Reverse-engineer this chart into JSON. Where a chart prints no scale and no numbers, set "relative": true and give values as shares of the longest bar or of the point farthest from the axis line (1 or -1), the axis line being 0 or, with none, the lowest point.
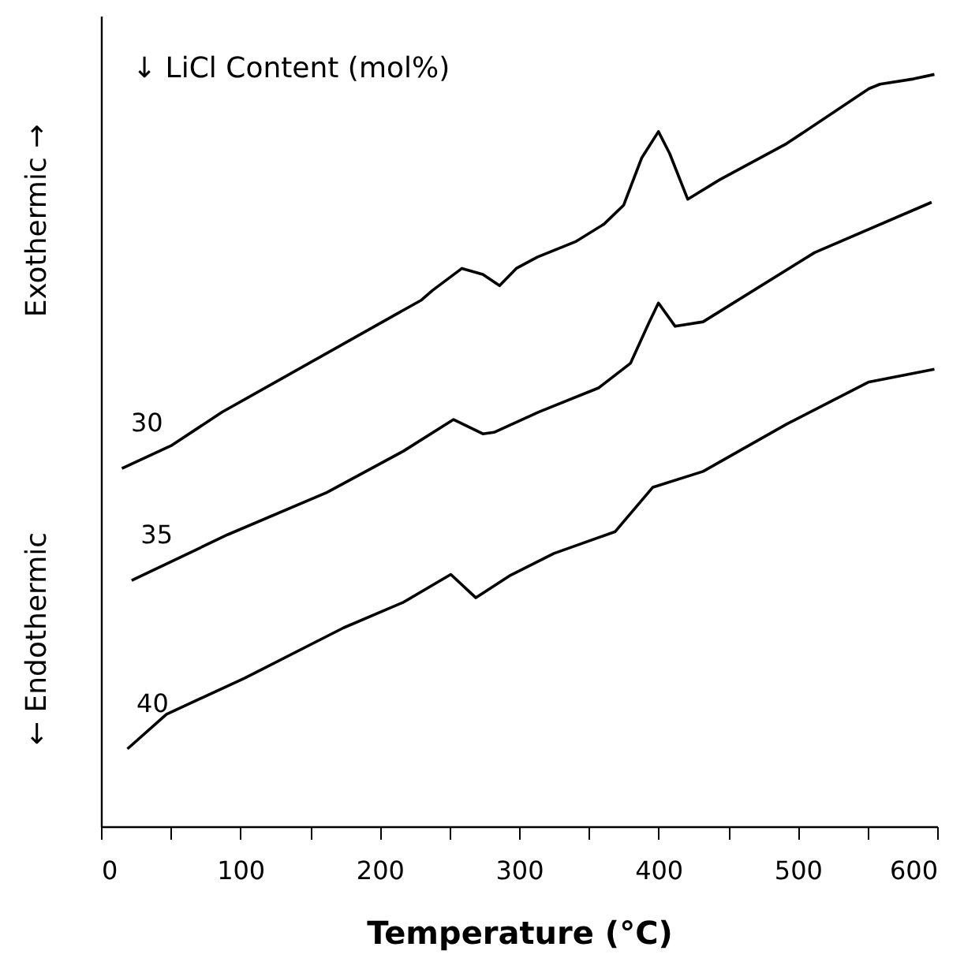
{
  "chart_data": {
    "type": "line",
    "xlabel": "Temperature (°C)",
    "relative": true,
    "grid": false,
    "marker": "none",
    "line_style": "solid",
    "xlim": [
      0,
      600
    ],
    "xticks": [
      0,
      {
        "value": 50,
        "label": null
      },
      100,
      {
        "value": 150,
        "label": null
      },
      200,
      {
        "value": 250,
        "label": null
      },
      300,
      {
        "value": 350,
        "label": null
      },
      400,
      {
        "value": 450,
        "label": null
      },
      500,
      {
        "value": 550,
        "label": null
      },
      600
    ],
    "annotations": [
      "↓  LiCl Content (mol%)",
      "Exothermic →",
      "← Endothermic"
    ],
    "series": [
      {
        "name": "30",
        "color": "#000000",
        "x": [
          15,
          51,
          87,
          230,
          238,
          259,
          274,
          286,
          298,
          313,
          341,
          361,
          375,
          388,
          400,
          408,
          421,
          444,
          492,
          551,
          559,
          583,
          598
        ],
        "values": [
          0.476,
          0.507,
          0.551,
          0.7,
          0.713,
          0.742,
          0.734,
          0.719,
          0.742,
          0.757,
          0.778,
          0.801,
          0.826,
          0.889,
          0.924,
          0.895,
          0.834,
          0.86,
          0.908,
          0.981,
          0.987,
          0.994,
          1.0
        ]
      },
      {
        "name": "35",
        "color": "#000000",
        "x": [
          22,
          91,
          162,
          217,
          253,
          274,
          282,
          314,
          357,
          380,
          393,
          400,
          412,
          432,
          512,
          596
        ],
        "values": [
          0.327,
          0.388,
          0.444,
          0.499,
          0.541,
          0.522,
          0.524,
          0.551,
          0.583,
          0.616,
          0.669,
          0.696,
          0.665,
          0.671,
          0.763,
          0.83
        ]
      },
      {
        "name": "40",
        "color": "#000000",
        "x": [
          19,
          47,
          103,
          174,
          217,
          251,
          269,
          293,
          325,
          369,
          396,
          432,
          492,
          551,
          598
        ],
        "values": [
          0.103,
          0.149,
          0.197,
          0.264,
          0.298,
          0.335,
          0.304,
          0.333,
          0.363,
          0.392,
          0.451,
          0.472,
          0.535,
          0.591,
          0.608
        ]
      }
    ]
  }
}
